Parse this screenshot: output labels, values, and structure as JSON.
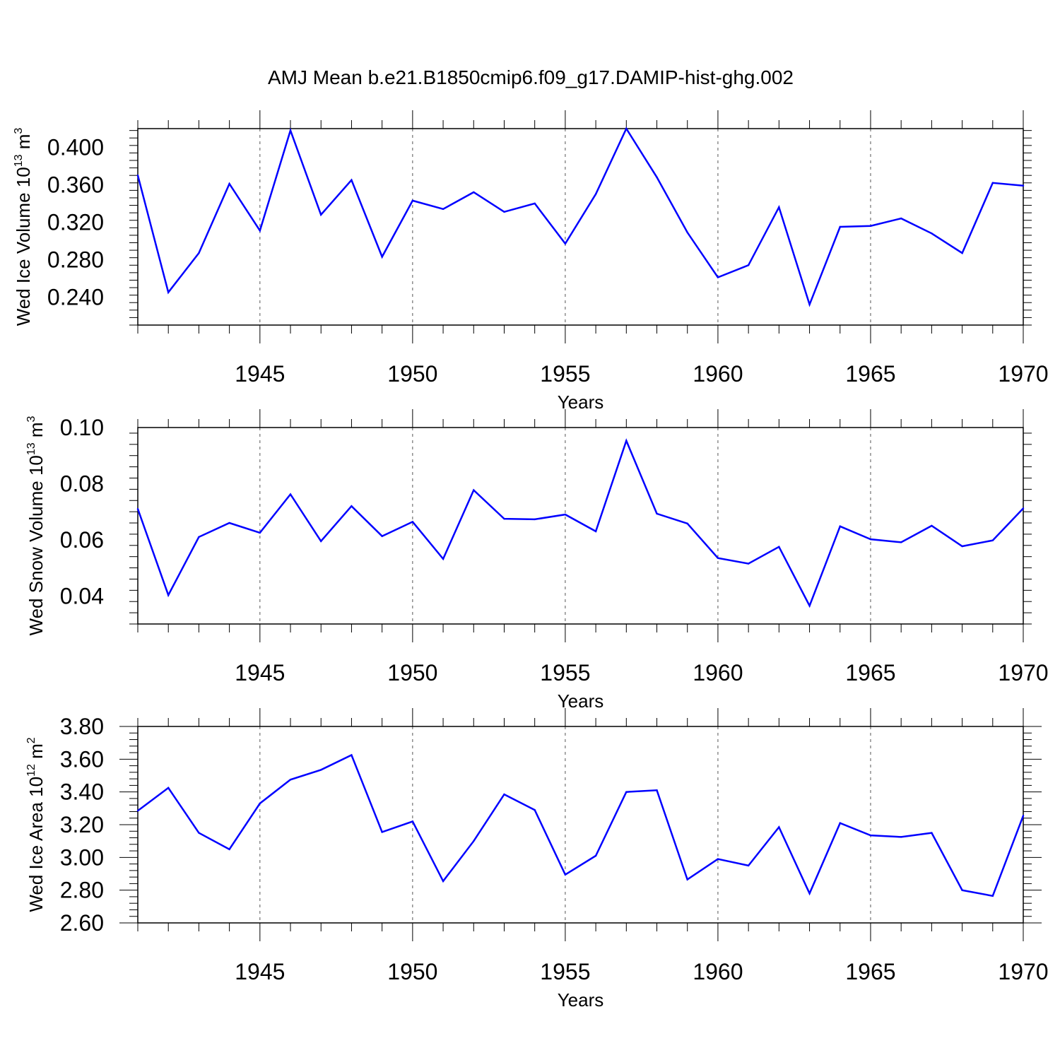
{
  "title": "AMJ Mean b.e21.B1850cmip6.f09_g17.DAMIP-hist-ghg.002",
  "line_color": "#0000ff",
  "chart_data": [
    {
      "type": "line",
      "id": "ice-volume",
      "ylabel": "Wed Ice Volume 10",
      "ylabel_exp": "13",
      "ylabel_unit": " m",
      "ylabel_unit_exp": "3",
      "xlabel": "Years",
      "xlim": [
        1941,
        1970
      ],
      "ylim": [
        0.21,
        0.42
      ],
      "yticks": [
        0.24,
        0.28,
        0.32,
        0.36,
        0.4
      ],
      "ytick_labels": [
        "0.240",
        "0.280",
        "0.320",
        "0.360",
        "0.400"
      ],
      "xticks": [
        1945,
        1950,
        1955,
        1960,
        1965,
        1970
      ],
      "xtick_labels": [
        "1945",
        "1950",
        "1955",
        "1960",
        "1965",
        "1970"
      ],
      "x": [
        1941,
        1942,
        1943,
        1944,
        1945,
        1946,
        1947,
        1948,
        1949,
        1950,
        1951,
        1952,
        1953,
        1954,
        1955,
        1956,
        1957,
        1958,
        1959,
        1960,
        1961,
        1962,
        1963,
        1964,
        1965,
        1966,
        1967,
        1968,
        1969,
        1970
      ],
      "values": [
        0.37,
        0.245,
        0.287,
        0.361,
        0.311,
        0.418,
        0.328,
        0.365,
        0.283,
        0.343,
        0.334,
        0.352,
        0.331,
        0.34,
        0.297,
        0.35,
        0.42,
        0.368,
        0.309,
        0.261,
        0.274,
        0.336,
        0.232,
        0.315,
        0.316,
        0.324,
        0.308,
        0.287,
        0.362,
        0.359
      ]
    },
    {
      "type": "line",
      "id": "snow-volume",
      "ylabel": "Wed Snow Volume 10",
      "ylabel_exp": "13",
      "ylabel_unit": " m",
      "ylabel_unit_exp": "3",
      "xlabel": "Years",
      "xlim": [
        1941,
        1970
      ],
      "ylim": [
        0.03,
        0.1
      ],
      "yticks": [
        0.04,
        0.06,
        0.08,
        0.1
      ],
      "ytick_labels": [
        "0.04",
        "0.06",
        "0.08",
        "0.10"
      ],
      "xticks": [
        1945,
        1950,
        1955,
        1960,
        1965,
        1970
      ],
      "xtick_labels": [
        "1945",
        "1950",
        "1955",
        "1960",
        "1965",
        "1970"
      ],
      "x": [
        1941,
        1942,
        1943,
        1944,
        1945,
        1946,
        1947,
        1948,
        1949,
        1950,
        1951,
        1952,
        1953,
        1954,
        1955,
        1956,
        1957,
        1958,
        1959,
        1960,
        1961,
        1962,
        1963,
        1964,
        1965,
        1966,
        1967,
        1968,
        1969,
        1970
      ],
      "values": [
        0.071,
        0.0403,
        0.061,
        0.066,
        0.0625,
        0.0762,
        0.0595,
        0.072,
        0.0613,
        0.0664,
        0.0532,
        0.0777,
        0.0675,
        0.0673,
        0.069,
        0.063,
        0.0953,
        0.0693,
        0.0658,
        0.0535,
        0.0515,
        0.0575,
        0.0365,
        0.0648,
        0.0602,
        0.0591,
        0.065,
        0.0577,
        0.0598,
        0.0712
      ]
    },
    {
      "type": "line",
      "id": "ice-area",
      "ylabel": "Wed Ice Area 10",
      "ylabel_exp": "12",
      "ylabel_unit": " m",
      "ylabel_unit_exp": "2",
      "xlabel": "Years",
      "xlim": [
        1941,
        1970
      ],
      "ylim": [
        2.6,
        3.8
      ],
      "yticks": [
        2.6,
        2.8,
        3.0,
        3.2,
        3.4,
        3.6,
        3.8
      ],
      "ytick_labels": [
        "2.60",
        "2.80",
        "3.00",
        "3.20",
        "3.40",
        "3.60",
        "3.80"
      ],
      "xticks": [
        1945,
        1950,
        1955,
        1960,
        1965,
        1970
      ],
      "xtick_labels": [
        "1945",
        "1950",
        "1955",
        "1960",
        "1965",
        "1970"
      ],
      "x": [
        1941,
        1942,
        1943,
        1944,
        1945,
        1946,
        1947,
        1948,
        1949,
        1950,
        1951,
        1952,
        1953,
        1954,
        1955,
        1956,
        1957,
        1958,
        1959,
        1960,
        1961,
        1962,
        1963,
        1964,
        1965,
        1966,
        1967,
        1968,
        1969,
        1970
      ],
      "values": [
        3.285,
        3.425,
        3.15,
        3.05,
        3.33,
        3.475,
        3.535,
        3.625,
        3.155,
        3.22,
        2.855,
        3.1,
        3.385,
        3.29,
        2.895,
        3.01,
        3.4,
        3.41,
        2.865,
        2.99,
        2.95,
        3.185,
        2.78,
        3.21,
        3.135,
        3.125,
        3.15,
        2.8,
        2.765,
        3.255
      ]
    }
  ]
}
